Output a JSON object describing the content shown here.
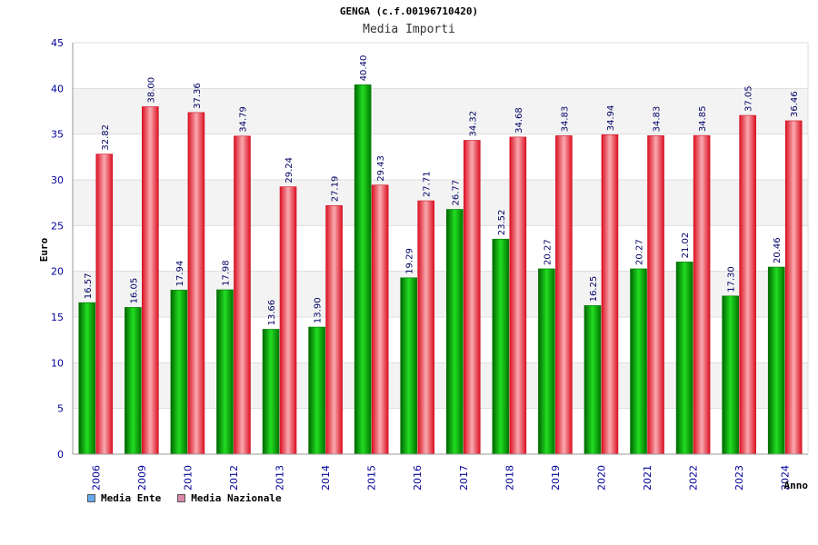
{
  "chart_data": {
    "type": "bar",
    "title": "GENGA (c.f.00196710420)",
    "subtitle": "Media Importi",
    "xlabel": "Anno",
    "ylabel": "Euro",
    "ylim": [
      0,
      45
    ],
    "yticks": [
      0,
      5,
      10,
      15,
      20,
      25,
      30,
      35,
      40,
      45
    ],
    "categories": [
      "2006",
      "2009",
      "2010",
      "2012",
      "2013",
      "2014",
      "2015",
      "2016",
      "2017",
      "2018",
      "2019",
      "2020",
      "2021",
      "2022",
      "2023",
      "2024"
    ],
    "series": [
      {
        "name": "Media Ente",
        "color": "#00bb00",
        "legend_color": "#66aaee",
        "values": [
          16.57,
          16.05,
          17.94,
          17.98,
          13.66,
          13.9,
          40.4,
          19.29,
          26.77,
          23.52,
          20.27,
          16.25,
          20.27,
          21.02,
          17.3,
          20.46
        ]
      },
      {
        "name": "Media Nazionale",
        "color": "#ee2233",
        "legend_color": "#dd88aa",
        "values": [
          32.82,
          38.0,
          37.36,
          34.79,
          29.24,
          27.19,
          29.43,
          27.71,
          34.32,
          34.68,
          34.83,
          34.94,
          34.83,
          34.85,
          37.05,
          36.46
        ]
      }
    ],
    "grid": true,
    "legend_position": "bottom-left"
  }
}
